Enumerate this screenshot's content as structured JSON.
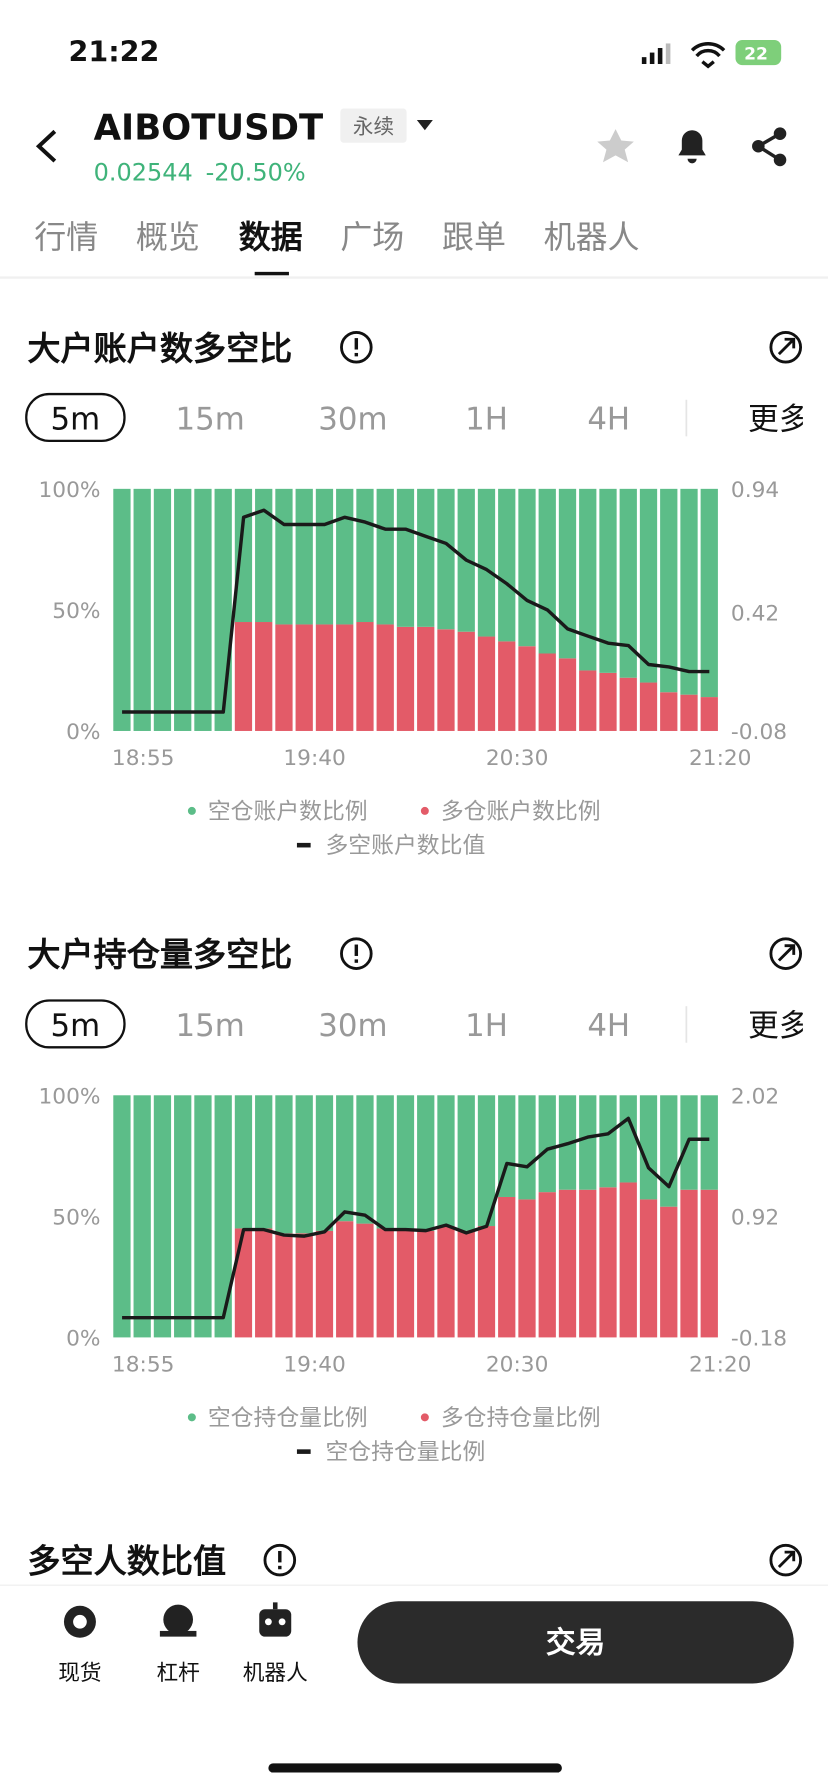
{
  "status_bar": {
    "time": "21:22",
    "battery": "22"
  },
  "header": {
    "symbol": "AIBOTUSDT",
    "tag": "永续",
    "price": "0.02544",
    "change": "-20.50%"
  },
  "tabs": [
    "行情",
    "概览",
    "数据",
    "广场",
    "跟单",
    "机器人"
  ],
  "intervals": [
    "5m",
    "15m",
    "30m",
    "1H",
    "4H",
    "更多"
  ],
  "chart_data": [
    {
      "type": "bar",
      "title": "大户账户数多空比",
      "categories": [
        "18:55",
        null,
        null,
        null,
        null,
        null,
        null,
        null,
        null,
        "19:40",
        null,
        null,
        null,
        null,
        null,
        null,
        null,
        null,
        null,
        "20:30",
        null,
        null,
        null,
        null,
        null,
        null,
        null,
        null,
        null,
        "21:20"
      ],
      "series": [
        {
          "name": "空仓账户数比例",
          "color": "#5cbd88",
          "values": [
            100,
            100,
            100,
            100,
            100,
            100,
            55,
            55,
            56,
            56,
            56,
            56,
            55,
            56,
            57,
            57,
            58,
            59,
            61,
            63,
            65,
            68,
            70,
            75,
            76,
            78,
            80,
            84,
            85,
            86
          ]
        },
        {
          "name": "多仓账户数比例",
          "color": "#e35b68",
          "values": [
            0,
            0,
            0,
            0,
            0,
            0,
            45,
            45,
            44,
            44,
            44,
            44,
            45,
            44,
            43,
            43,
            42,
            41,
            39,
            37,
            35,
            32,
            30,
            25,
            24,
            22,
            20,
            16,
            15,
            14
          ]
        },
        {
          "name": "多空账户数比值",
          "color": "#1a1a1a",
          "type": "line",
          "axis": "y2",
          "values": [
            0,
            0,
            0,
            0,
            0,
            0,
            0.82,
            0.85,
            0.79,
            0.79,
            0.79,
            0.82,
            0.8,
            0.77,
            0.77,
            0.74,
            0.71,
            0.64,
            0.6,
            0.54,
            0.47,
            0.43,
            0.35,
            0.32,
            0.29,
            0.28,
            0.2,
            0.19,
            0.17,
            0.17
          ]
        }
      ],
      "stacked": true,
      "ylim": [
        0,
        100
      ],
      "yticks": [
        {
          "value": 0,
          "label": "0%"
        },
        {
          "value": 50,
          "label": "50%"
        },
        {
          "value": 100,
          "label": "100%"
        }
      ],
      "y2lim": [
        -0.08,
        0.94
      ],
      "y2ticks": [
        -0.08,
        0.42,
        0.94
      ]
    },
    {
      "type": "bar",
      "title": "大户持仓量多空比",
      "categories": [
        "18:55",
        null,
        null,
        null,
        null,
        null,
        null,
        null,
        null,
        "19:40",
        null,
        null,
        null,
        null,
        null,
        null,
        null,
        null,
        null,
        "20:30",
        null,
        null,
        null,
        null,
        null,
        null,
        null,
        null,
        null,
        "21:20"
      ],
      "series": [
        {
          "name": "空仓持仓量比例",
          "color": "#5cbd88",
          "values": [
            100,
            100,
            100,
            100,
            100,
            100,
            55,
            55,
            57,
            57,
            56,
            52,
            53,
            55,
            55,
            56,
            54,
            56,
            54,
            42,
            43,
            40,
            39,
            39,
            38,
            36,
            43,
            46,
            39,
            39
          ]
        },
        {
          "name": "多仓持仓量比例",
          "color": "#e35b68",
          "values": [
            0,
            0,
            0,
            0,
            0,
            0,
            45,
            45,
            43,
            43,
            44,
            48,
            47,
            45,
            45,
            44,
            46,
            44,
            46,
            58,
            57,
            60,
            61,
            61,
            62,
            64,
            57,
            54,
            61,
            61
          ]
        },
        {
          "name": "空仓持仓量比例",
          "color": "#1a1a1a",
          "type": "line",
          "axis": "y2",
          "values": [
            0,
            0,
            0,
            0,
            0,
            0,
            0.8,
            0.8,
            0.75,
            0.74,
            0.78,
            0.96,
            0.93,
            0.8,
            0.8,
            0.79,
            0.84,
            0.77,
            0.83,
            1.4,
            1.37,
            1.53,
            1.58,
            1.64,
            1.67,
            1.81,
            1.36,
            1.19,
            1.62,
            1.62
          ]
        }
      ],
      "stacked": true,
      "ylim": [
        0,
        100
      ],
      "yticks": [
        {
          "value": 0,
          "label": "0%"
        },
        {
          "value": 50,
          "label": "50%"
        },
        {
          "value": 100,
          "label": "100%"
        }
      ],
      "y2lim": [
        -0.18,
        2.02
      ],
      "y2ticks": [
        -0.18,
        0.92,
        2.02
      ]
    }
  ],
  "next_section": {
    "title": "多空人数比值"
  },
  "bottom_bar": {
    "items": [
      "现货",
      "杠杆",
      "机器人"
    ],
    "button": "交易"
  }
}
